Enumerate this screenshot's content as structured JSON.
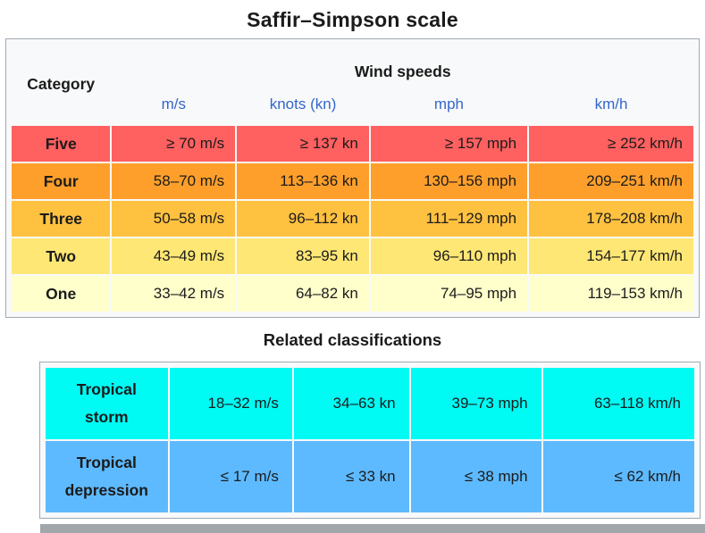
{
  "page": {
    "title": "Saffir–Simpson scale",
    "related_heading": "Related classifications"
  },
  "colors": {
    "category_five": "#ff6060",
    "category_four": "#ff9f2b",
    "category_three": "#ffc140",
    "category_two": "#ffe775",
    "category_one": "#ffffcc",
    "tropical_storm": "#00faf4",
    "tropical_depression": "#5ebaff",
    "link_blue": "#3366cc",
    "table_background": "#f8f9fa",
    "table_border": "#a2a9b1"
  },
  "scale_table": {
    "category_header": "Category",
    "wind_speeds_header": "Wind speeds",
    "unit_headers": [
      "m/s",
      "knots (kn)",
      "mph",
      "km/h"
    ],
    "rows": [
      {
        "category": "Five",
        "ms": "≥ 70 m/s",
        "kn": "≥ 137 kn",
        "mph": "≥ 157 mph",
        "kmh": "≥ 252 km/h",
        "color": "#ff6060"
      },
      {
        "category": "Four",
        "ms": "58–70 m/s",
        "kn": "113–136 kn",
        "mph": "130–156 mph",
        "kmh": "209–251 km/h",
        "color": "#ff9f2b"
      },
      {
        "category": "Three",
        "ms": "50–58 m/s",
        "kn": "96–112 kn",
        "mph": "111–129 mph",
        "kmh": "178–208 km/h",
        "color": "#ffc140"
      },
      {
        "category": "Two",
        "ms": "43–49 m/s",
        "kn": "83–95 kn",
        "mph": "96–110 mph",
        "kmh": "154–177 km/h",
        "color": "#ffe775"
      },
      {
        "category": "One",
        "ms": "33–42 m/s",
        "kn": "64–82 kn",
        "mph": "74–95 mph",
        "kmh": "119–153 km/h",
        "color": "#ffffcc"
      }
    ]
  },
  "related_table": {
    "rows": [
      {
        "category": "Tropical storm",
        "ms": "18–32 m/s",
        "kn": "34–63 kn",
        "mph": "39–73 mph",
        "kmh": "63–118 km/h",
        "color": "#00faf4"
      },
      {
        "category": "Tropical depression",
        "ms": "≤ 17 m/s",
        "kn": "≤ 33 kn",
        "mph": "≤ 38 mph",
        "kmh": "≤ 62 km/h",
        "color": "#5ebaff"
      }
    ]
  }
}
